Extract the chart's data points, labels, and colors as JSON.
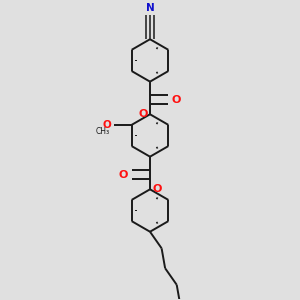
{
  "background_color": "#e0e0e0",
  "bond_color": "#1a1a1a",
  "oxygen_color": "#ff1010",
  "nitrogen_color": "#1010cc",
  "lw": 1.4,
  "figsize": [
    3.0,
    3.0
  ],
  "dpi": 100,
  "xlim": [
    -2.5,
    2.5
  ],
  "ylim": [
    -5.5,
    3.5
  ]
}
